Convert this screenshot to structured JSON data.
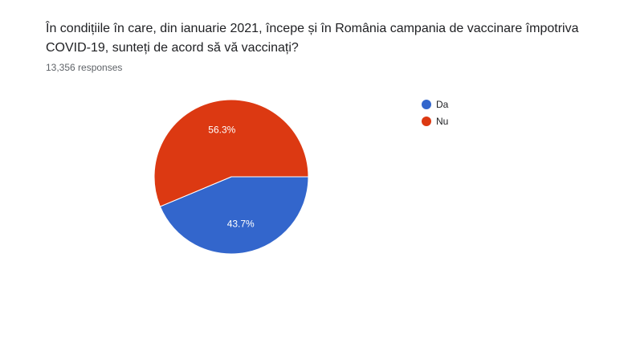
{
  "question": {
    "title": "În condițiile în care, din ianuarie 2021, începe și în România campania de vaccinare împotriva COVID-19, sunteți de acord să vă vaccinați?",
    "responses": "13,356 responses"
  },
  "chart_data": {
    "type": "pie",
    "title": "",
    "slices": [
      {
        "label": "Da",
        "percent": 43.7,
        "display": "43.7%",
        "color": "#3366cc"
      },
      {
        "label": "Nu",
        "percent": 56.3,
        "display": "56.3%",
        "color": "#dc3912"
      }
    ],
    "legend_position": "right",
    "start_angle_deg": 90,
    "direction": "clockwise"
  }
}
